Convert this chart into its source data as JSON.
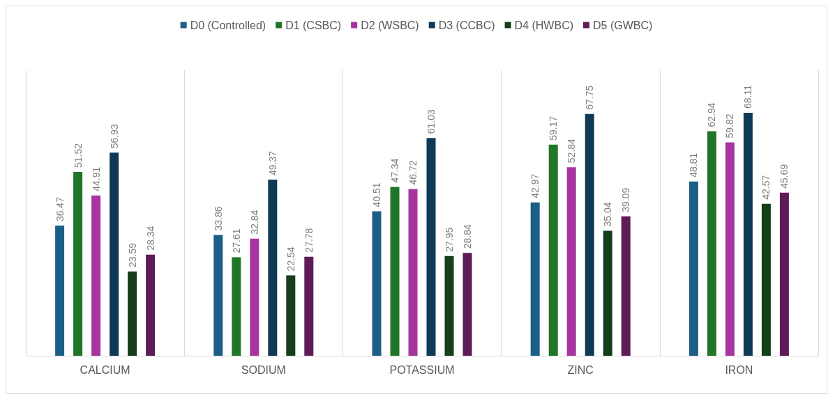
{
  "chart_data": {
    "type": "bar",
    "categories": [
      "CALCIUM",
      "SODIUM",
      "POTASSIUM",
      "ZINC",
      "IRON"
    ],
    "series": [
      {
        "name": "D0 (Controlled)",
        "color": "#1b5f86",
        "values": [
          36.47,
          33.86,
          40.51,
          42.97,
          48.81
        ]
      },
      {
        "name": "D1 (CSBC)",
        "color": "#1f7528",
        "values": [
          51.52,
          27.61,
          47.34,
          59.17,
          62.94
        ]
      },
      {
        "name": "D2 (WSBC)",
        "color": "#a8359f",
        "values": [
          44.91,
          32.84,
          46.72,
          52.84,
          59.82
        ]
      },
      {
        "name": "D3 (CCBC)",
        "color": "#0e3a56",
        "values": [
          56.93,
          49.37,
          61.03,
          67.75,
          68.11
        ]
      },
      {
        "name": "D4 (HWBC)",
        "color": "#143f19",
        "values": [
          23.59,
          22.54,
          27.95,
          35.04,
          42.57
        ]
      },
      {
        "name": "D5 (GWBC)",
        "color": "#5e1b57",
        "values": [
          28.34,
          27.78,
          28.84,
          39.09,
          45.69
        ]
      }
    ],
    "data_labels": true,
    "grid": "x",
    "legend": "top",
    "tick_labels": "x"
  }
}
